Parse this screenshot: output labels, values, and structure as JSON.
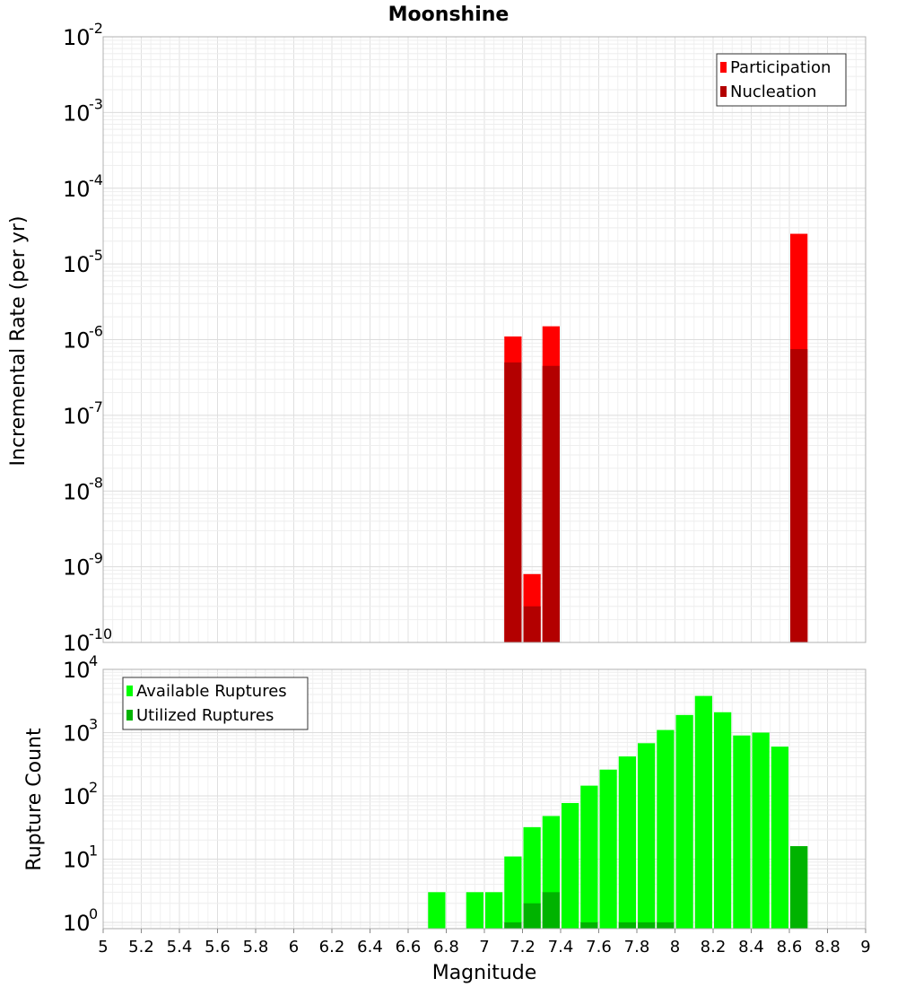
{
  "chart_data": {
    "title": "Moonshine",
    "xlabel": "Magnitude",
    "x_ticks": [
      "5",
      "5.2",
      "5.4",
      "5.6",
      "5.8",
      "6",
      "6.2",
      "6.4",
      "6.6",
      "6.8",
      "7",
      "7.2",
      "7.4",
      "7.6",
      "7.8",
      "8",
      "8.2",
      "8.4",
      "8.6",
      "8.8",
      "9"
    ],
    "xlim": [
      5,
      9
    ],
    "bin_width": 0.1,
    "grid": true,
    "panels": [
      {
        "type": "bar",
        "ylabel": "Incremental Rate (per yr)",
        "yscale": "log",
        "ylim_exp": [
          -10,
          -2
        ],
        "legend_position": "top-right",
        "series": [
          {
            "name": "Participation",
            "color": "#ff0000",
            "x": [
              7.15,
              7.25,
              7.35,
              8.65
            ],
            "values": [
              1.1e-06,
              8e-10,
              1.5e-06,
              2.5e-05
            ]
          },
          {
            "name": "Nucleation",
            "color": "#b30000",
            "x": [
              7.15,
              7.25,
              7.35,
              8.65
            ],
            "values": [
              5e-07,
              3e-10,
              4.5e-07,
              7.5e-07
            ]
          }
        ]
      },
      {
        "type": "bar",
        "ylabel": "Rupture Count",
        "yscale": "log",
        "ylim_exp": [
          -0.1,
          4
        ],
        "legend_position": "top-left",
        "series": [
          {
            "name": "Available Ruptures",
            "color": "#00ff00",
            "x": [
              6.75,
              6.95,
              7.05,
              7.15,
              7.25,
              7.35,
              7.45,
              7.55,
              7.65,
              7.75,
              7.85,
              7.95,
              8.05,
              8.15,
              8.25,
              8.35,
              8.45,
              8.55,
              8.65
            ],
            "values": [
              3,
              3,
              3,
              11,
              32,
              48,
              77,
              145,
              260,
              420,
              680,
              1100,
              1900,
              3800,
              2100,
              900,
              1000,
              600,
              16
            ]
          },
          {
            "name": "Utilized Ruptures",
            "color": "#00b300",
            "x": [
              7.15,
              7.25,
              7.35,
              7.55,
              7.75,
              7.85,
              7.95,
              8.65
            ],
            "values": [
              1,
              2,
              3,
              1,
              1,
              1,
              1,
              16
            ]
          }
        ]
      }
    ]
  }
}
